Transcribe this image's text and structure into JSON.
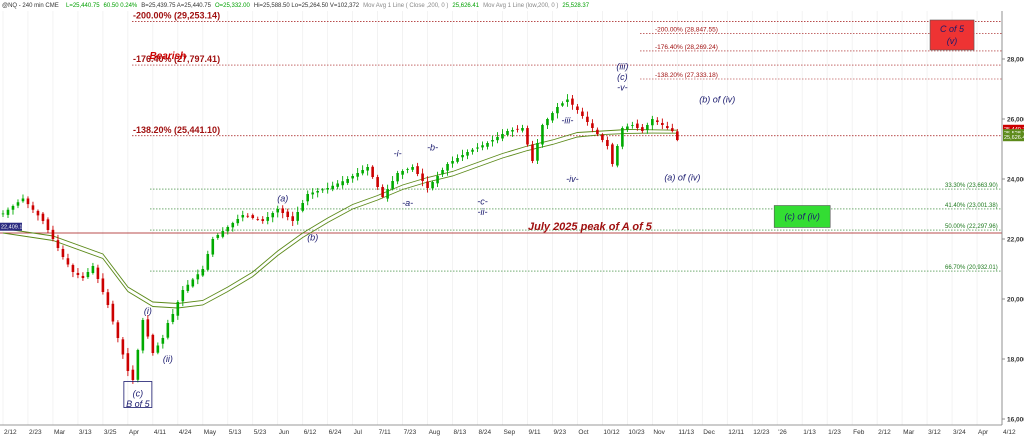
{
  "header": {
    "symbol": "@NQ - 240 min  CME",
    "stats": [
      {
        "label": "L=25,440.75",
        "color": "#00a000"
      },
      {
        "label": "60.50  0.24%",
        "color": "#00a000"
      },
      {
        "label": "B=25,439.75  A=25,440.75",
        "color": "#333333"
      },
      {
        "label": "O=25,332.00",
        "color": "#00a000"
      },
      {
        "label": "Hi=25,588.50  Lo=25,264.50  V=102,372",
        "color": "#333333"
      },
      {
        "label": "Mov Avg 1 Line ( Close ,200, 0 )",
        "color": "#888888"
      },
      {
        "label": "25,626.41",
        "color": "#00a000"
      },
      {
        "label": "Mov Avg 1 Line (low,200, 0 )",
        "color": "#888888"
      },
      {
        "label": "25,528.37",
        "color": "#00a000"
      }
    ]
  },
  "chart_data": {
    "type": "candlestick",
    "colors": {
      "up": "#00aa00",
      "down": "#cc0000",
      "ma": "#5c8a1a",
      "bearish": "#cc0000",
      "fib_up": "#a01010",
      "fib_down": "#1e7a1e",
      "wave": "#1a1a6e"
    },
    "y_axis": {
      "ylim": [
        15800,
        29600
      ],
      "tick_values": [
        16000,
        18000,
        20000,
        22000,
        24000,
        26000,
        28000
      ],
      "tick_labels": [
        "16,000",
        "18,000",
        "20,000",
        "22,000",
        "24,000",
        "26,000",
        "28,000"
      ]
    },
    "x_axis": {
      "labels": [
        "2/12",
        "2/23",
        "Mar",
        "3/13",
        "3/25",
        "Apr",
        "4/11",
        "4/24",
        "May",
        "5/13",
        "5/23",
        "Jun",
        "6/12",
        "6/24",
        "Jul",
        "7/11",
        "7/23",
        "Aug",
        "8/13",
        "8/24",
        "Sep",
        "9/11",
        "9/23",
        "Oct",
        "10/12",
        "10/23",
        "Nov",
        "11/13",
        "Dec",
        "12/11",
        "12/23",
        "'26",
        "1/13",
        "1/23",
        "Feb",
        "2/12",
        "Mar",
        "3/12",
        "3/24",
        "Apr",
        "4/12"
      ]
    },
    "price_anchors": [
      [
        0,
        22850
      ],
      [
        4,
        23350
      ],
      [
        8,
        22600
      ],
      [
        12,
        21400
      ],
      [
        14,
        20900
      ],
      [
        16,
        20700
      ],
      [
        18,
        21100
      ],
      [
        21,
        19800
      ],
      [
        25,
        17600
      ],
      [
        26,
        17300
      ],
      [
        27,
        18300
      ],
      [
        28,
        19300
      ],
      [
        30,
        18200
      ],
      [
        32,
        18700
      ],
      [
        33,
        19200
      ],
      [
        34,
        19500
      ],
      [
        36,
        20300
      ],
      [
        40,
        21000
      ],
      [
        42,
        22000
      ],
      [
        45,
        22400
      ],
      [
        48,
        22800
      ],
      [
        52,
        22600
      ],
      [
        55,
        23000
      ],
      [
        58,
        22600
      ],
      [
        61,
        23500
      ],
      [
        65,
        23700
      ],
      [
        69,
        24000
      ],
      [
        73,
        24400
      ],
      [
        76,
        23400
      ],
      [
        79,
        24200
      ],
      [
        82,
        24400
      ],
      [
        85,
        23700
      ],
      [
        89,
        24500
      ],
      [
        93,
        24900
      ],
      [
        97,
        25200
      ],
      [
        101,
        25600
      ],
      [
        104,
        25700
      ],
      [
        106,
        24600
      ],
      [
        108,
        25800
      ],
      [
        111,
        26400
      ],
      [
        113,
        26650
      ],
      [
        115,
        26300
      ],
      [
        117,
        25900
      ],
      [
        119,
        25500
      ],
      [
        121,
        25100
      ],
      [
        122,
        24500
      ],
      [
        124,
        25700
      ],
      [
        126,
        25800
      ],
      [
        128,
        25600
      ],
      [
        130,
        26000
      ],
      [
        132,
        25800
      ],
      [
        134,
        25600
      ],
      [
        135,
        25300
      ]
    ],
    "moving_averages": [
      {
        "name": "Mov Avg 1 Line ( Close ,200, 0 )",
        "points": [
          [
            0,
            22350
          ],
          [
            10,
            22100
          ],
          [
            20,
            21500
          ],
          [
            25,
            20400
          ],
          [
            30,
            19900
          ],
          [
            35,
            19850
          ],
          [
            40,
            19950
          ],
          [
            45,
            20400
          ],
          [
            50,
            20900
          ],
          [
            55,
            21600
          ],
          [
            60,
            22200
          ],
          [
            65,
            22700
          ],
          [
            70,
            23150
          ],
          [
            75,
            23450
          ],
          [
            80,
            23800
          ],
          [
            85,
            24050
          ],
          [
            90,
            24250
          ],
          [
            95,
            24550
          ],
          [
            100,
            24850
          ],
          [
            105,
            25100
          ],
          [
            110,
            25300
          ],
          [
            115,
            25550
          ],
          [
            120,
            25600
          ],
          [
            125,
            25650
          ],
          [
            130,
            25640
          ],
          [
            135,
            25626
          ]
        ]
      },
      {
        "name": "Mov Avg 1 Line (low,200, 0 )",
        "points": [
          [
            0,
            22200
          ],
          [
            10,
            21950
          ],
          [
            20,
            21350
          ],
          [
            25,
            20250
          ],
          [
            30,
            19750
          ],
          [
            35,
            19700
          ],
          [
            40,
            19800
          ],
          [
            45,
            20250
          ],
          [
            50,
            20750
          ],
          [
            55,
            21450
          ],
          [
            60,
            22050
          ],
          [
            65,
            22550
          ],
          [
            70,
            23000
          ],
          [
            75,
            23300
          ],
          [
            80,
            23650
          ],
          [
            85,
            23900
          ],
          [
            90,
            24100
          ],
          [
            95,
            24400
          ],
          [
            100,
            24700
          ],
          [
            105,
            24950
          ],
          [
            110,
            25150
          ],
          [
            115,
            25400
          ],
          [
            120,
            25480
          ],
          [
            125,
            25520
          ],
          [
            130,
            25530
          ],
          [
            135,
            25528
          ]
        ]
      }
    ],
    "fib_lines_extension": [
      {
        "label": "-200.00% (29,253.14)",
        "value": 29253.14
      },
      {
        "label": "-176.40% (27,797.41)",
        "value": 27797.41
      },
      {
        "label": "-138.20% (25,441.10)",
        "value": 25441.1
      }
    ],
    "fib_lines_small": [
      {
        "label": "-200.00% (28,847.55)",
        "value": 28847.55
      },
      {
        "label": "-176.40% (28,269.24)",
        "value": 28269.24
      },
      {
        "label": "-138.20% (27,333.18)",
        "value": 27333.18
      }
    ],
    "fib_lines_retracement": [
      {
        "label": "33.30% (23,663.90)",
        "value": 23663.9
      },
      {
        "label": "41.40% (23,001.38)",
        "value": 23001.38
      },
      {
        "label": "50.00% (22,297.96)",
        "value": 22297.96
      },
      {
        "label": "66.70% (20,932.01)",
        "value": 20932.01
      }
    ],
    "peak_line": {
      "label": "July 2025 peak of A of 5",
      "value": 22200
    },
    "annotations": [
      {
        "text": "Bearish",
        "at": [
          33,
          28000
        ],
        "style": "bearish"
      },
      {
        "text": "(c)",
        "at": [
          27,
          16750
        ],
        "style": "wave"
      },
      {
        "text": "B of 5",
        "at": [
          27,
          16400
        ],
        "style": "wave"
      },
      {
        "text": "(i)",
        "at": [
          29,
          19500
        ],
        "style": "wave"
      },
      {
        "text": "(ii)",
        "at": [
          33,
          17900
        ],
        "style": "wave"
      },
      {
        "text": "(a)",
        "at": [
          56,
          23250
        ],
        "style": "wave"
      },
      {
        "text": "(b)",
        "at": [
          62,
          21950
        ],
        "style": "wave"
      },
      {
        "text": "-i-",
        "at": [
          79,
          24750
        ],
        "style": "wave"
      },
      {
        "text": "-a-",
        "at": [
          81,
          23100
        ],
        "style": "wave"
      },
      {
        "text": "-b-",
        "at": [
          86,
          24950
        ],
        "style": "wave"
      },
      {
        "text": "-c-",
        "at": [
          96,
          23150
        ],
        "style": "wave"
      },
      {
        "text": "-ii-",
        "at": [
          96,
          22800
        ],
        "style": "wave"
      },
      {
        "text": "-iii-",
        "at": [
          113,
          25850
        ],
        "style": "wave"
      },
      {
        "text": "-iv-",
        "at": [
          114,
          23900
        ],
        "style": "wave"
      },
      {
        "text": "(iii)",
        "at": [
          124,
          27650
        ],
        "style": "wave"
      },
      {
        "text": "(c)",
        "at": [
          124,
          27300
        ],
        "style": "wave"
      },
      {
        "text": "-v-",
        "at": [
          124,
          26950
        ],
        "style": "wave"
      },
      {
        "text": "(b) of (iv)",
        "at": [
          143,
          26550
        ],
        "style": "wave"
      },
      {
        "text": "(a) of (iv)",
        "at": [
          136,
          23950
        ],
        "style": "wave"
      }
    ],
    "boxes": [
      {
        "line1": "C of 5",
        "line2": "(v)",
        "at": [
          190,
          28800
        ],
        "fill": "#ee3333",
        "text_color": "#1a1a6e"
      },
      {
        "line1": "(c) of (iv)",
        "line2": "",
        "at": [
          160,
          22750
        ],
        "fill": "#33dd33",
        "text_color": "#1a1a6e"
      }
    ],
    "price_tags": [
      {
        "label": "25,440.75",
        "value": 25440.75,
        "color": "#cc0000"
      },
      {
        "label": "25,528.37",
        "value": 25528.37,
        "color": "#5c8a1a"
      },
      {
        "label": "25,626.41",
        "value": 25626.41,
        "color": "#5c8a1a"
      }
    ],
    "left_tag": {
      "label": "22,409.11",
      "value": 22409.11,
      "color": "#2a2a80"
    }
  }
}
